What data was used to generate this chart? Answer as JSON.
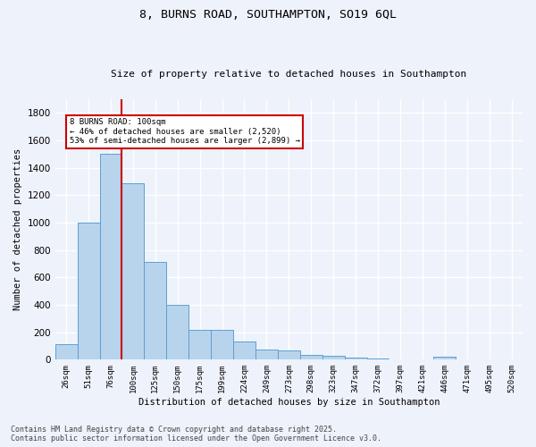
{
  "title1": "8, BURNS ROAD, SOUTHAMPTON, SO19 6QL",
  "title2": "Size of property relative to detached houses in Southampton",
  "xlabel": "Distribution of detached houses by size in Southampton",
  "ylabel": "Number of detached properties",
  "categories": [
    "26sqm",
    "51sqm",
    "76sqm",
    "100sqm",
    "125sqm",
    "150sqm",
    "175sqm",
    "199sqm",
    "224sqm",
    "249sqm",
    "273sqm",
    "298sqm",
    "323sqm",
    "347sqm",
    "372sqm",
    "397sqm",
    "421sqm",
    "446sqm",
    "471sqm",
    "495sqm",
    "520sqm"
  ],
  "values": [
    110,
    1000,
    1500,
    1290,
    710,
    400,
    215,
    215,
    135,
    75,
    65,
    35,
    30,
    15,
    10,
    0,
    0,
    20,
    0,
    0,
    0
  ],
  "bar_color": "#b8d4ed",
  "bar_edge_color": "#5a9fd4",
  "vline_color": "#cc0000",
  "annotation_text": "8 BURNS ROAD: 100sqm\n← 46% of detached houses are smaller (2,520)\n53% of semi-detached houses are larger (2,899) →",
  "annotation_box_color": "#ffffff",
  "annotation_box_edge_color": "#cc0000",
  "bg_color": "#eef2fa",
  "grid_color": "#ffffff",
  "footer1": "Contains HM Land Registry data © Crown copyright and database right 2025.",
  "footer2": "Contains public sector information licensed under the Open Government Licence v3.0.",
  "ylim": [
    0,
    1900
  ],
  "yticks": [
    0,
    200,
    400,
    600,
    800,
    1000,
    1200,
    1400,
    1600,
    1800
  ]
}
